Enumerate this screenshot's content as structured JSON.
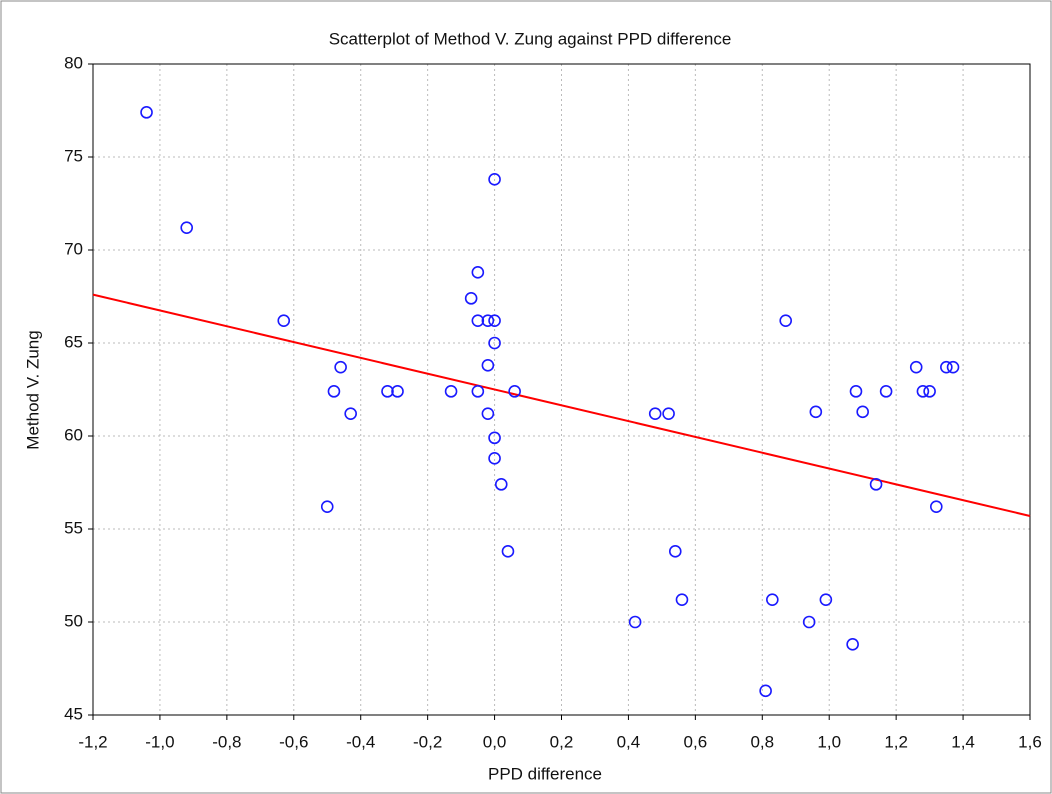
{
  "chart_data": {
    "type": "scatter",
    "title": "Scatterplot of Method V. Zung against PPD difference",
    "x_label": "PPD difference",
    "y_label": "Method V. Zung",
    "grid": true,
    "series": [
      {
        "color": "#1a1aff",
        "x": [
          -1.04,
          -0.92,
          -0.63,
          -0.46,
          -0.48,
          -0.43,
          -0.5,
          -0.32,
          -0.29,
          -0.13,
          0.0,
          -0.05,
          -0.07,
          -0.05,
          -0.02,
          0.0,
          0.0,
          -0.02,
          -0.05,
          0.06,
          -0.02,
          0.0,
          0.0,
          0.02,
          0.04,
          0.42,
          0.48,
          0.52,
          0.54,
          0.56,
          0.81,
          0.83,
          0.87,
          0.94,
          0.96,
          0.99,
          1.07,
          1.08,
          1.1,
          1.14,
          1.17,
          1.26,
          1.28,
          1.3,
          1.32,
          1.35,
          1.37
        ],
        "values": [
          77.4,
          71.2,
          66.2,
          63.7,
          62.4,
          61.2,
          56.2,
          62.4,
          62.4,
          62.4,
          73.8,
          68.8,
          67.4,
          66.2,
          66.2,
          66.2,
          65.0,
          63.8,
          62.4,
          62.4,
          61.2,
          59.9,
          58.8,
          57.4,
          53.8,
          50.0,
          61.2,
          61.2,
          53.8,
          51.2,
          46.3,
          51.2,
          66.2,
          50.0,
          61.3,
          51.2,
          48.8,
          62.4,
          61.3,
          57.4,
          62.4,
          63.7,
          62.4,
          62.4,
          56.2,
          63.7,
          63.7
        ]
      }
    ],
    "fit_line": {
      "color": "#ff0000",
      "x": [
        -1.2,
        1.6
      ],
      "values": [
        67.6,
        55.7
      ]
    },
    "xlim": [
      -1.2,
      1.6
    ],
    "xticks": [
      {
        "value": -1.2,
        "label": "-1,2"
      },
      {
        "value": -1.0,
        "label": "-1,0"
      },
      {
        "value": -0.8,
        "label": "-0,8"
      },
      {
        "value": -0.6,
        "label": "-0,6"
      },
      {
        "value": -0.4,
        "label": "-0,4"
      },
      {
        "value": -0.2,
        "label": "-0,2"
      },
      {
        "value": 0.0,
        "label": "0,0"
      },
      {
        "value": 0.2,
        "label": "0,2"
      },
      {
        "value": 0.4,
        "label": "0,4"
      },
      {
        "value": 0.6,
        "label": "0,6"
      },
      {
        "value": 0.8,
        "label": "0,8"
      },
      {
        "value": 1.0,
        "label": "1,0"
      },
      {
        "value": 1.2,
        "label": "1,2"
      },
      {
        "value": 1.4,
        "label": "1,4"
      },
      {
        "value": 1.6,
        "label": "1,6"
      }
    ],
    "ylim": [
      45,
      80
    ],
    "yticks": [
      45,
      50,
      55,
      60,
      65,
      70,
      75,
      80
    ]
  }
}
